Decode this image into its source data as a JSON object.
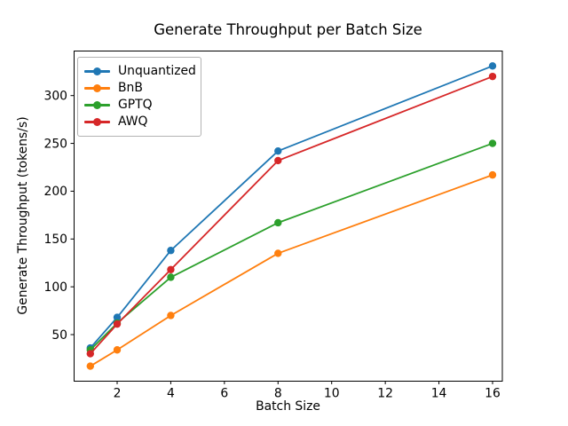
{
  "chart_data": {
    "type": "line",
    "title": "Generate Throughput per Batch Size",
    "xlabel": "Batch Size",
    "ylabel": "Generate Throughput (tokens/s)",
    "x": [
      1,
      2,
      4,
      8,
      16
    ],
    "series": [
      {
        "name": "Unquantized",
        "color": "#1f77b4",
        "values": [
          36,
          68,
          138,
          242,
          331
        ]
      },
      {
        "name": "BnB",
        "color": "#ff7f0e",
        "values": [
          17,
          34,
          70,
          135,
          217
        ]
      },
      {
        "name": "GPTQ",
        "color": "#2ca02c",
        "values": [
          34,
          62,
          110,
          167,
          250
        ]
      },
      {
        "name": "AWQ",
        "color": "#d62728",
        "values": [
          30,
          61,
          118,
          232,
          320
        ]
      }
    ],
    "xticks": [
      2,
      4,
      6,
      8,
      10,
      12,
      14,
      16
    ],
    "yticks": [
      50,
      100,
      150,
      200,
      250,
      300
    ],
    "xlim": [
      0.38,
      16.75
    ],
    "ylim": [
      1.7,
      346.4
    ],
    "grid": false,
    "marker": "o",
    "legend_position": "upper left",
    "axis_color": "#000000",
    "background_color": "#ffffff"
  }
}
